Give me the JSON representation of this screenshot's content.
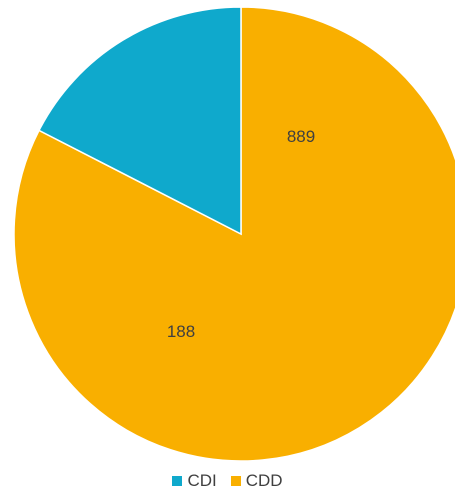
{
  "chart_data": {
    "type": "pie",
    "title": "",
    "categories": [
      "CDI",
      "CDD"
    ],
    "values": [
      188,
      889
    ],
    "colors": [
      "#0FA9CC",
      "#F9AF00"
    ],
    "data_labels": [
      "188",
      "889"
    ],
    "legend_position": "bottom"
  }
}
